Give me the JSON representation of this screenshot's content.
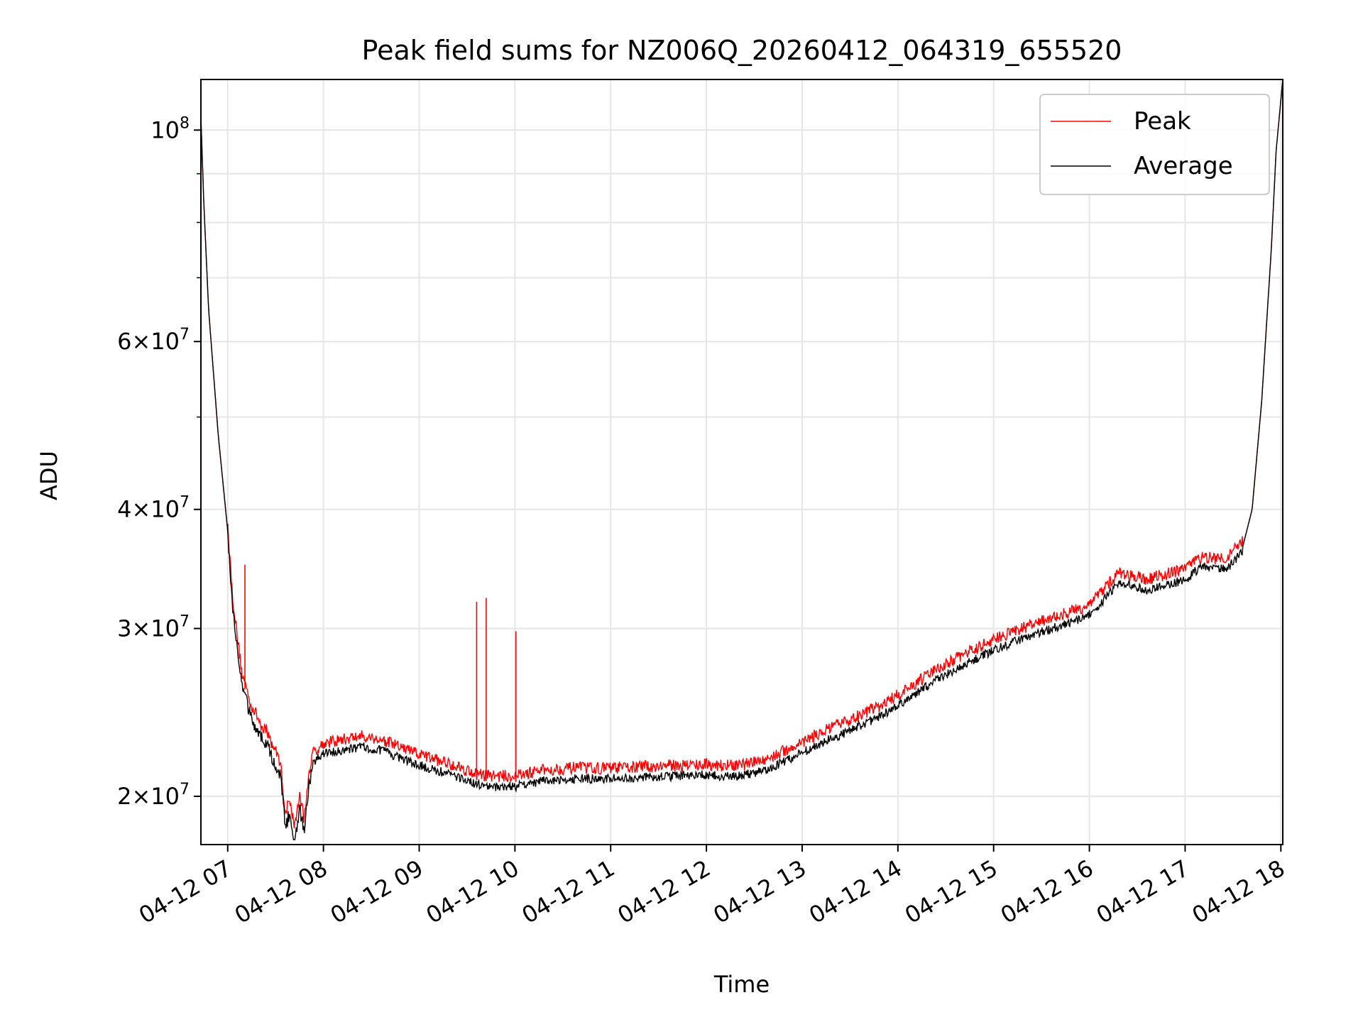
{
  "chart_data": {
    "type": "line",
    "title": "Peak field sums for NZ006Q_20260412_064319_655520",
    "xlabel": "Time",
    "ylabel": "ADU",
    "yscale": "log",
    "ylim": [
      17800000,
      113000000
    ],
    "xlim_hours": [
      6.72,
      18.02
    ],
    "grid": true,
    "legend_position": "top-right",
    "x_ticks": [
      {
        "hour": 7,
        "label": "04-12 07"
      },
      {
        "hour": 8,
        "label": "04-12 08"
      },
      {
        "hour": 9,
        "label": "04-12 09"
      },
      {
        "hour": 10,
        "label": "04-12 10"
      },
      {
        "hour": 11,
        "label": "04-12 11"
      },
      {
        "hour": 12,
        "label": "04-12 12"
      },
      {
        "hour": 13,
        "label": "04-12 13"
      },
      {
        "hour": 14,
        "label": "04-12 14"
      },
      {
        "hour": 15,
        "label": "04-12 15"
      },
      {
        "hour": 16,
        "label": "04-12 16"
      },
      {
        "hour": 17,
        "label": "04-12 17"
      },
      {
        "hour": 18,
        "label": "04-12 18"
      }
    ],
    "y_ticks": [
      {
        "value": 20000000,
        "mant": "2",
        "exp": "7"
      },
      {
        "value": 30000000,
        "mant": "3",
        "exp": "7"
      },
      {
        "value": 40000000,
        "mant": "4",
        "exp": "7"
      },
      {
        "value": 60000000,
        "mant": "6",
        "exp": "7"
      },
      {
        "value": 100000000,
        "mant": "",
        "exp": "8"
      }
    ],
    "y_minor_ticks": [
      50000000,
      70000000,
      80000000,
      90000000
    ],
    "series": [
      {
        "name": "Peak",
        "color": "#ff0000",
        "spikes": [
          {
            "hour": 7.18,
            "value": 35000000
          },
          {
            "hour": 9.6,
            "value": 32000000
          },
          {
            "hour": 9.7,
            "value": 32300000
          },
          {
            "hour": 10.01,
            "value": 29800000
          }
        ]
      },
      {
        "name": "Average",
        "color": "#000000",
        "x_hours": [
          6.72,
          6.75,
          6.8,
          6.9,
          7.0,
          7.05,
          7.1,
          7.15,
          7.2,
          7.25,
          7.3,
          7.35,
          7.4,
          7.45,
          7.5,
          7.55,
          7.6,
          7.65,
          7.7,
          7.75,
          7.8,
          7.85,
          7.9,
          8.0,
          8.2,
          8.4,
          8.6,
          8.8,
          9.0,
          9.2,
          9.4,
          9.6,
          9.8,
          10.0,
          10.3,
          10.6,
          11.0,
          11.5,
          12.0,
          12.3,
          12.6,
          12.9,
          13.2,
          13.5,
          13.8,
          14.1,
          14.4,
          14.7,
          15.0,
          15.3,
          15.6,
          15.9,
          16.0,
          16.15,
          16.3,
          16.45,
          16.6,
          16.8,
          17.0,
          17.1,
          17.2,
          17.3,
          17.45,
          17.6,
          17.7,
          17.8,
          17.9,
          17.95,
          18.02
        ],
        "values": [
          103000000,
          84000000,
          65000000,
          48000000,
          38000000,
          32000000,
          29000000,
          26500000,
          25500000,
          24500000,
          24000000,
          23400000,
          23200000,
          22500000,
          22000000,
          21400000,
          19000000,
          19500000,
          18300000,
          19800000,
          18600000,
          21000000,
          22000000,
          22400000,
          22600000,
          22800000,
          22600000,
          22200000,
          21800000,
          21500000,
          21200000,
          20800000,
          20700000,
          20700000,
          21000000,
          21100000,
          21100000,
          21200000,
          21300000,
          21200000,
          21500000,
          22200000,
          23000000,
          23700000,
          24500000,
          25500000,
          26800000,
          27800000,
          28800000,
          29600000,
          30300000,
          31000000,
          31400000,
          32500000,
          33800000,
          33600000,
          33300000,
          33700000,
          34100000,
          34800000,
          35200000,
          35000000,
          35200000,
          36500000,
          40000000,
          52000000,
          75000000,
          95000000,
          113000000
        ]
      }
    ]
  }
}
